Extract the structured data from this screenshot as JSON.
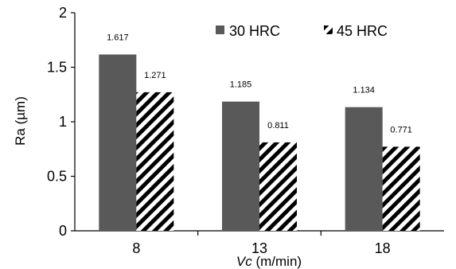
{
  "chart_data": {
    "type": "bar",
    "categories": [
      "8",
      "13",
      "18"
    ],
    "series": [
      {
        "name": "30 HRC",
        "values": [
          1.617,
          1.185,
          1.134
        ],
        "value_labels": [
          "1.617",
          "1.185",
          "1.134"
        ],
        "fill": "solid",
        "color": "#595959"
      },
      {
        "name": "45 HRC",
        "values": [
          1.271,
          0.811,
          0.771
        ],
        "value_labels": [
          "1.271",
          "0.811",
          "0.771"
        ],
        "fill": "diagonal-stripes",
        "color": "#000000"
      }
    ],
    "xlabel_italic": "Vc",
    "xlabel_unit": " (m/min)",
    "ylabel": "Ra (µm)",
    "ylim": [
      0,
      2
    ],
    "yticks": [
      "0",
      "0.5",
      "1",
      "1.5",
      "2"
    ],
    "ytick_values": [
      0,
      0.5,
      1,
      1.5,
      2
    ],
    "grid": false,
    "legend_position": "top"
  }
}
